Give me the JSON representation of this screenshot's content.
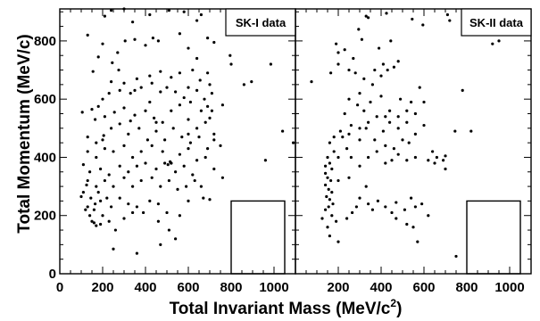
{
  "chart_data": {
    "type": "scatter",
    "xlabel": "Total Invariant Mass (MeV/c",
    "xlabel_sup": "2",
    "xlabel_close": ")",
    "ylabel": "Total Momentum (MeV/c)",
    "xlim": [
      0,
      1100
    ],
    "ylim": [
      0,
      910
    ],
    "x_ticks": [
      0,
      200,
      400,
      600,
      800,
      1000
    ],
    "y_ticks": [
      0,
      200,
      400,
      600,
      800
    ],
    "signal_box": {
      "x": [
        800,
        1050
      ],
      "y": [
        0,
        250
      ]
    },
    "panels": [
      {
        "legend": "SK-I data",
        "points": [
          [
            105,
            555
          ],
          [
            130,
            820
          ],
          [
            210,
            885
          ],
          [
            240,
            905
          ],
          [
            300,
            910
          ],
          [
            340,
            865
          ],
          [
            420,
            890
          ],
          [
            510,
            905
          ],
          [
            580,
            900
          ],
          [
            660,
            890
          ],
          [
            155,
            695
          ],
          [
            180,
            745
          ],
          [
            200,
            790
          ],
          [
            270,
            760
          ],
          [
            305,
            800
          ],
          [
            350,
            805
          ],
          [
            400,
            785
          ],
          [
            435,
            810
          ],
          [
            460,
            800
          ],
          [
            560,
            825
          ],
          [
            640,
            870
          ],
          [
            690,
            810
          ],
          [
            600,
            775
          ],
          [
            640,
            740
          ],
          [
            720,
            795
          ],
          [
            795,
            750
          ],
          [
            895,
            660
          ],
          [
            985,
            720
          ],
          [
            245,
            725
          ],
          [
            275,
            700
          ],
          [
            240,
            660
          ],
          [
            300,
            655
          ],
          [
            360,
            670
          ],
          [
            420,
            680
          ],
          [
            470,
            695
          ],
          [
            520,
            675
          ],
          [
            560,
            690
          ],
          [
            620,
            700
          ],
          [
            655,
            665
          ],
          [
            690,
            690
          ],
          [
            700,
            650
          ],
          [
            710,
            620
          ],
          [
            675,
            600
          ],
          [
            690,
            575
          ],
          [
            660,
            560
          ],
          [
            710,
            560
          ],
          [
            640,
            630
          ],
          [
            600,
            640
          ],
          [
            580,
            605
          ],
          [
            540,
            625
          ],
          [
            500,
            640
          ],
          [
            470,
            625
          ],
          [
            430,
            655
          ],
          [
            380,
            640
          ],
          [
            330,
            620
          ],
          [
            280,
            630
          ],
          [
            230,
            620
          ],
          [
            200,
            600
          ],
          [
            180,
            575
          ],
          [
            150,
            565
          ],
          [
            165,
            530
          ],
          [
            210,
            540
          ],
          [
            255,
            555
          ],
          [
            300,
            570
          ],
          [
            350,
            545
          ],
          [
            400,
            560
          ],
          [
            440,
            535
          ],
          [
            480,
            520
          ],
          [
            520,
            560
          ],
          [
            560,
            580
          ],
          [
            600,
            530
          ],
          [
            640,
            500
          ],
          [
            680,
            520
          ],
          [
            720,
            480
          ],
          [
            750,
            440
          ],
          [
            860,
            650
          ],
          [
            1040,
            490
          ],
          [
            1090,
            450
          ],
          [
            610,
            590
          ],
          [
            700,
            535
          ],
          [
            130,
            470
          ],
          [
            170,
            450
          ],
          [
            205,
            475
          ],
          [
            240,
            500
          ],
          [
            280,
            515
          ],
          [
            320,
            480
          ],
          [
            370,
            500
          ],
          [
            410,
            460
          ],
          [
            450,
            490
          ],
          [
            490,
            460
          ],
          [
            530,
            500
          ],
          [
            570,
            470
          ],
          [
            610,
            450
          ],
          [
            650,
            470
          ],
          [
            690,
            430
          ],
          [
            720,
            460
          ],
          [
            130,
            420
          ],
          [
            170,
            400
          ],
          [
            210,
            430
          ],
          [
            250,
            420
          ],
          [
            300,
            440
          ],
          [
            340,
            400
          ],
          [
            380,
            420
          ],
          [
            430,
            440
          ],
          [
            480,
            420
          ],
          [
            520,
            380
          ],
          [
            560,
            410
          ],
          [
            600,
            430
          ],
          [
            640,
            390
          ],
          [
            680,
            400
          ],
          [
            720,
            360
          ],
          [
            760,
            330
          ],
          [
            960,
            390
          ],
          [
            110,
            375
          ],
          [
            140,
            350
          ],
          [
            190,
            360
          ],
          [
            230,
            340
          ],
          [
            280,
            370
          ],
          [
            320,
            350
          ],
          [
            360,
            370
          ],
          [
            400,
            380
          ],
          [
            450,
            360
          ],
          [
            490,
            380
          ],
          [
            540,
            350
          ],
          [
            580,
            370
          ],
          [
            620,
            340
          ],
          [
            660,
            300
          ],
          [
            130,
            320
          ],
          [
            170,
            300
          ],
          [
            210,
            320
          ],
          [
            250,
            300
          ],
          [
            300,
            330
          ],
          [
            340,
            300
          ],
          [
            380,
            320
          ],
          [
            430,
            330
          ],
          [
            470,
            300
          ],
          [
            510,
            320
          ],
          [
            550,
            290
          ],
          [
            590,
            300
          ],
          [
            630,
            320
          ],
          [
            670,
            260
          ],
          [
            700,
            255
          ],
          [
            110,
            280
          ],
          [
            145,
            260
          ],
          [
            165,
            240
          ],
          [
            190,
            250
          ],
          [
            130,
            230
          ],
          [
            160,
            220
          ],
          [
            200,
            200
          ],
          [
            240,
            230
          ],
          [
            280,
            260
          ],
          [
            320,
            240
          ],
          [
            360,
            230
          ],
          [
            420,
            250
          ],
          [
            460,
            240
          ],
          [
            500,
            210
          ],
          [
            560,
            200
          ],
          [
            600,
            250
          ],
          [
            120,
            220
          ],
          [
            150,
            180
          ],
          [
            170,
            165
          ],
          [
            190,
            170
          ],
          [
            160,
            175
          ],
          [
            140,
            200
          ],
          [
            230,
            180
          ],
          [
            260,
            150
          ],
          [
            300,
            190
          ],
          [
            340,
            210
          ],
          [
            390,
            210
          ],
          [
            460,
            180
          ],
          [
            510,
            150
          ],
          [
            470,
            100
          ],
          [
            540,
            120
          ],
          [
            250,
            85
          ],
          [
            360,
            70
          ],
          [
            100,
            265
          ],
          [
            125,
            305
          ],
          [
            180,
            280
          ],
          [
            220,
            260
          ],
          [
            520,
            380
          ],
          [
            505,
            375
          ],
          [
            515,
            385
          ],
          [
            330,
            525
          ],
          [
            200,
            460
          ],
          [
            760,
            580
          ],
          [
            800,
            720
          ],
          [
            350,
            630
          ],
          [
            420,
            590
          ],
          [
            450,
            520
          ],
          [
            600,
            480
          ]
        ]
      },
      {
        "legend": "SK-II data",
        "points": [
          [
            330,
            885
          ],
          [
            340,
            880
          ],
          [
            425,
            895
          ],
          [
            545,
            875
          ],
          [
            595,
            855
          ],
          [
            710,
            890
          ],
          [
            720,
            870
          ],
          [
            190,
            790
          ],
          [
            200,
            760
          ],
          [
            230,
            770
          ],
          [
            295,
            840
          ],
          [
            310,
            805
          ],
          [
            390,
            775
          ],
          [
            445,
            800
          ],
          [
            460,
            710
          ],
          [
            480,
            730
          ],
          [
            430,
            700
          ],
          [
            400,
            680
          ],
          [
            360,
            650
          ],
          [
            320,
            670
          ],
          [
            280,
            690
          ],
          [
            250,
            700
          ],
          [
            200,
            720
          ],
          [
            165,
            690
          ],
          [
            75,
            660
          ],
          [
            250,
            600
          ],
          [
            290,
            580
          ],
          [
            320,
            560
          ],
          [
            350,
            590
          ],
          [
            400,
            610
          ],
          [
            440,
            560
          ],
          [
            480,
            540
          ],
          [
            540,
            590
          ],
          [
            580,
            640
          ],
          [
            600,
            590
          ],
          [
            560,
            550
          ],
          [
            520,
            520
          ],
          [
            480,
            500
          ],
          [
            440,
            520
          ],
          [
            410,
            490
          ],
          [
            380,
            540
          ],
          [
            340,
            520
          ],
          [
            300,
            500
          ],
          [
            260,
            510
          ],
          [
            230,
            550
          ],
          [
            210,
            490
          ],
          [
            250,
            480
          ],
          [
            300,
            460
          ],
          [
            330,
            500
          ],
          [
            370,
            460
          ],
          [
            420,
            440
          ],
          [
            460,
            430
          ],
          [
            500,
            460
          ],
          [
            530,
            450
          ],
          [
            180,
            470
          ],
          [
            160,
            450
          ],
          [
            180,
            420
          ],
          [
            200,
            400
          ],
          [
            150,
            400
          ],
          [
            160,
            380
          ],
          [
            140,
            370
          ],
          [
            170,
            360
          ],
          [
            140,
            345
          ],
          [
            150,
            330
          ],
          [
            165,
            320
          ],
          [
            140,
            305
          ],
          [
            155,
            290
          ],
          [
            170,
            280
          ],
          [
            145,
            265
          ],
          [
            160,
            255
          ],
          [
            175,
            240
          ],
          [
            155,
            230
          ],
          [
            140,
            220
          ],
          [
            125,
            190
          ],
          [
            170,
            200
          ],
          [
            190,
            180
          ],
          [
            150,
            160
          ],
          [
            160,
            130
          ],
          [
            200,
            110
          ],
          [
            240,
            190
          ],
          [
            265,
            210
          ],
          [
            285,
            230
          ],
          [
            300,
            260
          ],
          [
            340,
            240
          ],
          [
            360,
            220
          ],
          [
            385,
            250
          ],
          [
            420,
            230
          ],
          [
            450,
            210
          ],
          [
            470,
            245
          ],
          [
            510,
            220
          ],
          [
            540,
            260
          ],
          [
            560,
            230
          ],
          [
            590,
            240
          ],
          [
            620,
            200
          ],
          [
            470,
            190
          ],
          [
            520,
            170
          ],
          [
            550,
            160
          ],
          [
            570,
            110
          ],
          [
            620,
            390
          ],
          [
            640,
            420
          ],
          [
            650,
            380
          ],
          [
            660,
            400
          ],
          [
            690,
            390
          ],
          [
            700,
            405
          ],
          [
            340,
            400
          ],
          [
            380,
            420
          ],
          [
            420,
            380
          ],
          [
            450,
            390
          ],
          [
            480,
            410
          ],
          [
            520,
            390
          ],
          [
            560,
            400
          ],
          [
            300,
            370
          ],
          [
            260,
            400
          ],
          [
            240,
            430
          ],
          [
            220,
            470
          ],
          [
            780,
            630
          ],
          [
            820,
            490
          ],
          [
            920,
            790
          ],
          [
            950,
            800
          ],
          [
            750,
            60
          ],
          [
            745,
            490
          ],
          [
            270,
            740
          ],
          [
            370,
            700
          ],
          [
            410,
            720
          ],
          [
            490,
            600
          ],
          [
            520,
            560
          ],
          [
            600,
            510
          ],
          [
            300,
            620
          ],
          [
            420,
            540
          ],
          [
            560,
            480
          ],
          [
            700,
            360
          ],
          [
            200,
            320
          ],
          [
            250,
            330
          ],
          [
            330,
            300
          ]
        ]
      }
    ]
  }
}
